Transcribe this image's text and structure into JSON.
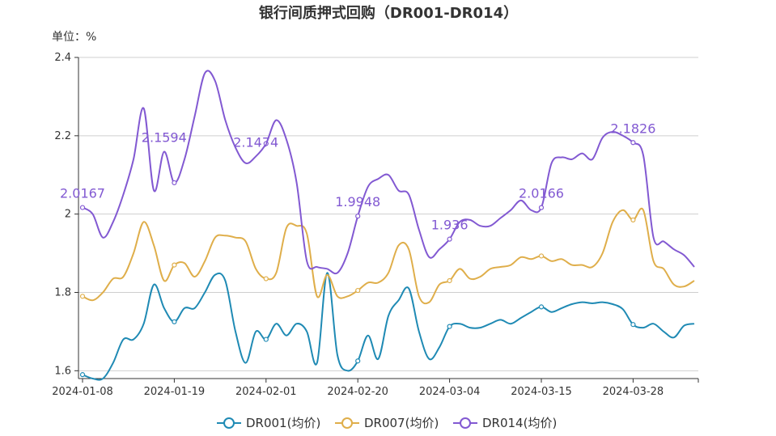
{
  "chart_data": {
    "type": "line",
    "title": "银行间质押式回购（DR001-DR014）",
    "unit_label": "单位：%",
    "ylim": [
      1.58,
      2.4
    ],
    "y_ticks": [
      "1.6",
      "1.8",
      "2",
      "2.2",
      "2.4"
    ],
    "y_tick_values": [
      1.6,
      1.8,
      2.0,
      2.2,
      2.4
    ],
    "x_ticks": [
      "2024-01-08",
      "2024-01-19",
      "2024-02-01",
      "2024-02-20",
      "2024-03-04",
      "2024-03-15",
      "2024-03-28"
    ],
    "x_tick_index": [
      0,
      9,
      18,
      27,
      36,
      45,
      54
    ],
    "grid": true,
    "legend_position": "bottom",
    "x": [
      "2024-01-08",
      "2024-01-09",
      "2024-01-10",
      "2024-01-11",
      "2024-01-12",
      "2024-01-15",
      "2024-01-16",
      "2024-01-17",
      "2024-01-18",
      "2024-01-19",
      "2024-01-22",
      "2024-01-23",
      "2024-01-24",
      "2024-01-25",
      "2024-01-26",
      "2024-01-29",
      "2024-01-30",
      "2024-01-31",
      "2024-02-01",
      "2024-02-02",
      "2024-02-04",
      "2024-02-05",
      "2024-02-06",
      "2024-02-07",
      "2024-02-08",
      "2024-02-18",
      "2024-02-19",
      "2024-02-20",
      "2024-02-21",
      "2024-02-22",
      "2024-02-23",
      "2024-02-26",
      "2024-02-27",
      "2024-02-28",
      "2024-02-29",
      "2024-03-01",
      "2024-03-04",
      "2024-03-05",
      "2024-03-06",
      "2024-03-07",
      "2024-03-08",
      "2024-03-11",
      "2024-03-12",
      "2024-03-13",
      "2024-03-14",
      "2024-03-15",
      "2024-03-18",
      "2024-03-19",
      "2024-03-20",
      "2024-03-21",
      "2024-03-22",
      "2024-03-25",
      "2024-03-26",
      "2024-03-27",
      "2024-03-28",
      "2024-03-29",
      "2024-04-01",
      "2024-04-02",
      "2024-04-03",
      "2024-04-07",
      "2024-04-08"
    ],
    "series": [
      {
        "name": "DR001(均价)",
        "color": "#1f8ab4",
        "values": [
          1.59,
          1.58,
          1.58,
          1.62,
          1.68,
          1.68,
          1.72,
          1.82,
          1.76,
          1.725,
          1.76,
          1.76,
          1.8,
          1.845,
          1.83,
          1.7,
          1.62,
          1.7,
          1.68,
          1.72,
          1.69,
          1.72,
          1.7,
          1.62,
          1.85,
          1.64,
          1.6,
          1.625,
          1.69,
          1.63,
          1.74,
          1.78,
          1.81,
          1.7,
          1.63,
          1.66,
          1.713,
          1.72,
          1.71,
          1.71,
          1.72,
          1.73,
          1.72,
          1.735,
          1.75,
          1.763,
          1.75,
          1.76,
          1.77,
          1.775,
          1.772,
          1.775,
          1.77,
          1.757,
          1.718,
          1.71,
          1.72,
          1.7,
          1.685,
          1.715,
          1.72
        ],
        "labels": []
      },
      {
        "name": "DR007(均价)",
        "color": "#dfae4a",
        "values": [
          1.79,
          1.78,
          1.8,
          1.835,
          1.84,
          1.9,
          1.98,
          1.92,
          1.83,
          1.87,
          1.875,
          1.84,
          1.88,
          1.94,
          1.945,
          1.94,
          1.93,
          1.86,
          1.835,
          1.85,
          1.965,
          1.97,
          1.95,
          1.79,
          1.845,
          1.79,
          1.79,
          1.805,
          1.825,
          1.825,
          1.85,
          1.92,
          1.91,
          1.79,
          1.775,
          1.82,
          1.83,
          1.86,
          1.835,
          1.84,
          1.86,
          1.865,
          1.87,
          1.89,
          1.885,
          1.893,
          1.88,
          1.885,
          1.87,
          1.87,
          1.865,
          1.9,
          1.98,
          2.01,
          1.985,
          2.01,
          1.88,
          1.86,
          1.82,
          1.815,
          1.83
        ],
        "labels": []
      },
      {
        "name": "DR014(均价)",
        "color": "#8259d2",
        "values": [
          2.0167,
          2.0,
          1.94,
          1.98,
          2.05,
          2.14,
          2.27,
          2.06,
          2.1594,
          2.08,
          2.14,
          2.25,
          2.36,
          2.34,
          2.24,
          2.17,
          2.13,
          2.1474,
          2.18,
          2.24,
          2.19,
          2.08,
          1.88,
          1.865,
          1.86,
          1.85,
          1.9,
          1.9948,
          2.07,
          2.09,
          2.1,
          2.06,
          2.05,
          1.96,
          1.89,
          1.91,
          1.936,
          1.98,
          1.985,
          1.97,
          1.97,
          1.99,
          2.01,
          2.035,
          2.01,
          2.0166,
          2.13,
          2.145,
          2.14,
          2.155,
          2.14,
          2.195,
          2.21,
          2.2,
          2.1826,
          2.15,
          1.94,
          1.93,
          1.91,
          1.895,
          1.865
        ],
        "labels": [
          {
            "i": 0,
            "text": "2.0167"
          },
          {
            "i": 8,
            "text": "2.1594"
          },
          {
            "i": 17,
            "text": "2.1474"
          },
          {
            "i": 27,
            "text": "1.9948"
          },
          {
            "i": 36,
            "text": "1.936"
          },
          {
            "i": 45,
            "text": "2.0166"
          },
          {
            "i": 54,
            "text": "2.1826"
          }
        ]
      }
    ],
    "marker_index": [
      0,
      9,
      18,
      27,
      36,
      45,
      54
    ],
    "legend": [
      "DR001(均价)",
      "DR007(均价)",
      "DR014(均价)"
    ]
  }
}
